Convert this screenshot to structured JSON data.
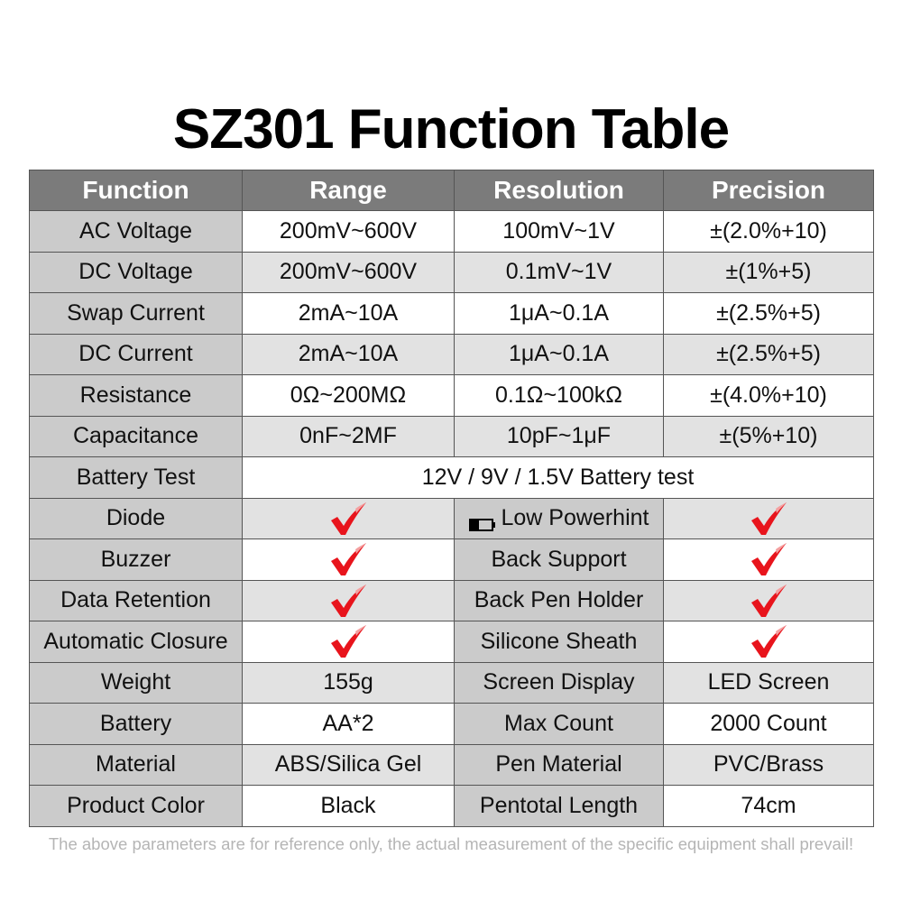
{
  "title": "SZ301 Function Table",
  "headers": [
    "Function",
    "Range",
    "Resolution",
    "Precision"
  ],
  "measure_rows": [
    {
      "function": "AC Voltage",
      "range": "200mV~600V",
      "resolution": "100mV~1V",
      "precision": "±(2.0%+10)"
    },
    {
      "function": "DC Voltage",
      "range": "200mV~600V",
      "resolution": "0.1mV~1V",
      "precision": "±(1%+5)"
    },
    {
      "function": "Swap Current",
      "range": "2mA~10A",
      "resolution": "1μA~0.1A",
      "precision": "±(2.5%+5)"
    },
    {
      "function": "DC Current",
      "range": "2mA~10A",
      "resolution": "1μA~0.1A",
      "precision": "±(2.5%+5)"
    },
    {
      "function": "Resistance",
      "range": "0Ω~200MΩ",
      "resolution": "0.1Ω~100kΩ",
      "precision": "±(4.0%+10)"
    },
    {
      "function": "Capacitance",
      "range": "0nF~2MF",
      "resolution": "10pF~1μF",
      "precision": "±(5%+10)"
    }
  ],
  "battery_test": {
    "label": "Battery Test",
    "value": "12V / 9V / 1.5V Battery test"
  },
  "feature_rows": [
    {
      "left": "Diode",
      "left_supported": true,
      "right": "Low Powerhint",
      "right_icon": "low-battery-icon",
      "right_supported": true
    },
    {
      "left": "Buzzer",
      "left_supported": true,
      "right": "Back Support",
      "right_supported": true
    },
    {
      "left": "Data Retention",
      "left_supported": true,
      "right": "Back Pen Holder",
      "right_supported": true
    },
    {
      "left": "Automatic Closure",
      "left_supported": true,
      "right": "Silicone Sheath",
      "right_supported": true
    }
  ],
  "spec_rows": [
    {
      "left": "Weight",
      "left_value": "155g",
      "right": "Screen Display",
      "right_value": "LED Screen"
    },
    {
      "left": "Battery",
      "left_value": "AA*2",
      "right": "Max Count",
      "right_value": "2000 Count"
    },
    {
      "left": "Material",
      "left_value": "ABS/Silica Gel",
      "right": "Pen Material",
      "right_value": "PVC/Brass"
    },
    {
      "left": "Product Color",
      "left_value": "Black",
      "right": "Pentotal Length",
      "right_value": "74cm"
    }
  ],
  "note": "The above parameters are for reference only, the actual measurement of the specific equipment shall prevail!",
  "colors": {
    "header_bg": "#7b7b7b",
    "label_bg": "#cbcbcb",
    "alt_row_bg": "#e2e2e2",
    "check": "#e8141c"
  }
}
